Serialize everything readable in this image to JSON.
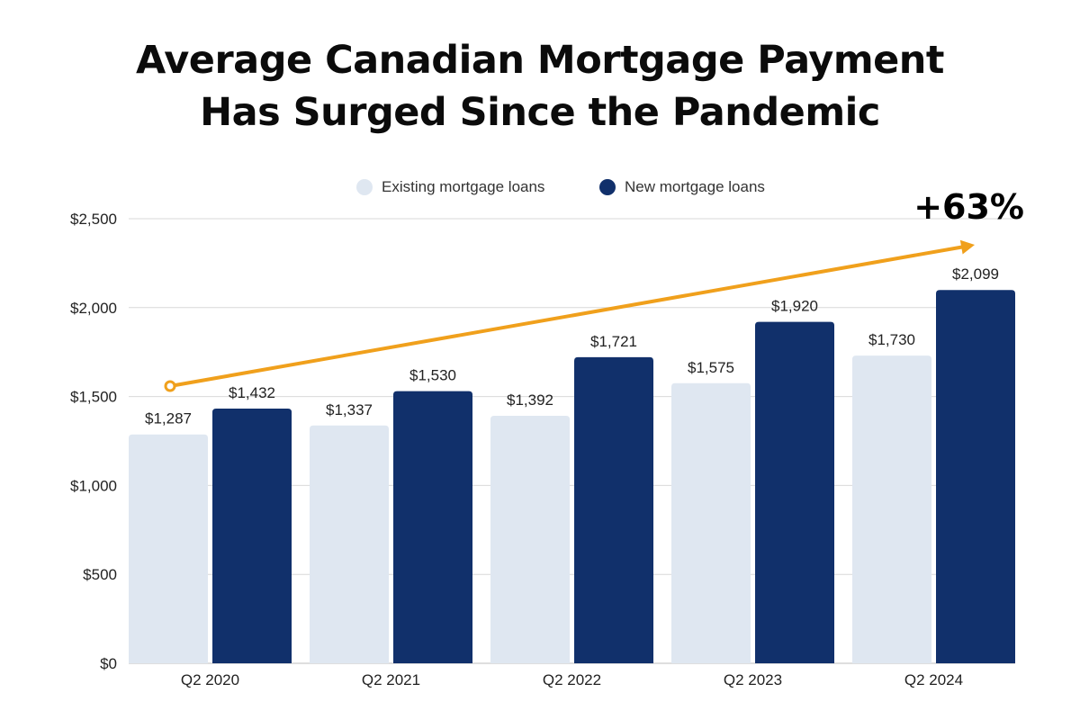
{
  "title_lines": [
    "Average Canadian Mortgage Payment",
    "Has Surged Since the Pandemic"
  ],
  "colors": {
    "existing": "#dfe7f1",
    "new": "#11306b",
    "arrow": "#f0a01c",
    "grid": "#d9d9d9",
    "axis_text": "#222222"
  },
  "chart_data": {
    "type": "bar",
    "title": "Average Canadian Mortgage Payment Has Surged Since the Pandemic",
    "categories": [
      "Q2 2020",
      "Q2 2021",
      "Q2 2022",
      "Q2 2023",
      "Q2 2024"
    ],
    "series": [
      {
        "name": "Existing mortgage loans",
        "values": [
          1287,
          1337,
          1392,
          1575,
          1730
        ],
        "labels": [
          "$1,287",
          "$1,337",
          "$1,392",
          "$1,575",
          "$1,730"
        ]
      },
      {
        "name": "New mortgage loans",
        "values": [
          1432,
          1530,
          1721,
          1920,
          2099
        ],
        "labels": [
          "$1,432",
          "$1,530",
          "$1,721",
          "$1,920",
          "$2,099"
        ]
      }
    ],
    "ylim": [
      0,
      2500
    ],
    "yticks": [
      0,
      500,
      1000,
      1500,
      2000,
      2500
    ],
    "ytick_labels": [
      "$0",
      "$500",
      "$1,000",
      "$1,500",
      "$2,000",
      "$2,500"
    ],
    "grid": true,
    "legend_position": "top-center",
    "annotation": {
      "text": "+63%",
      "type": "arrow",
      "description": "trend arrow from Q2 2020 to Q2 2024"
    }
  }
}
